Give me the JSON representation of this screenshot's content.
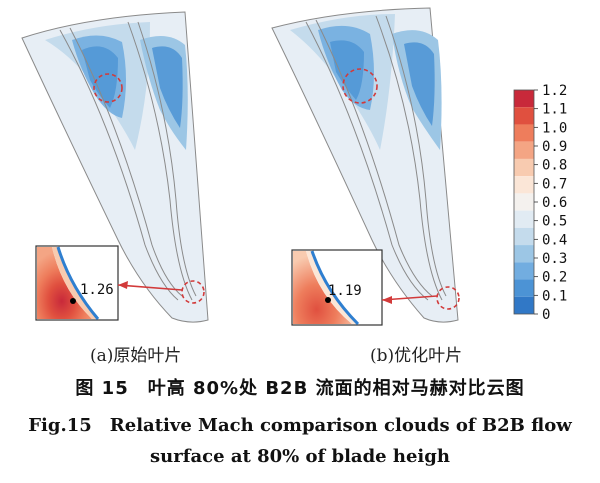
{
  "panels": [
    {
      "label": "(a)原始叶片",
      "probe_value": "1.26"
    },
    {
      "label": "(b)优化叶片",
      "probe_value": "1.19"
    }
  ],
  "colorbar": {
    "ticks": [
      "1.2",
      "1.1",
      "1.0",
      "0.9",
      "0.8",
      "0.7",
      "0.6",
      "0.5",
      "0.4",
      "0.3",
      "0.2",
      "0.1",
      "0"
    ],
    "colors": [
      "#c8293a",
      "#e0503f",
      "#ee7d5c",
      "#f4a584",
      "#f8cbb0",
      "#fbe6d7",
      "#f4f1ee",
      "#e1ebf3",
      "#c4dbec",
      "#9cc6e5",
      "#72ade0",
      "#4c93d5",
      "#3178c6"
    ]
  },
  "caption": {
    "cn": "图 15　叶高 80%处 B2B 流面的相对马赫对比云图",
    "en_line1": "Fig.15　Relative Mach comparison clouds of B2B flow",
    "en_line2": "surface at 80% of blade heigh"
  }
}
